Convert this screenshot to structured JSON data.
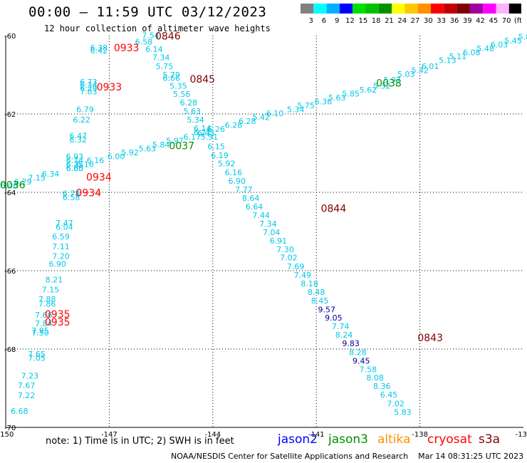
{
  "header": {
    "title": "00:00 — 11:59 UTC 03/12/2023",
    "subtitle": "12 hour collection of altimeter wave heights"
  },
  "color_scale": {
    "labels": [
      "3",
      "6",
      "9",
      "12",
      "15",
      "18",
      "21",
      "24",
      "27",
      "30",
      "33",
      "36",
      "39",
      "42",
      "45",
      "70",
      "(ft)"
    ],
    "colors": [
      "#808080",
      "#00ffff",
      "#00b0ff",
      "#0000ff",
      "#00e000",
      "#00c000",
      "#009000",
      "#ffff00",
      "#ffc800",
      "#ff9000",
      "#ff0000",
      "#c00000",
      "#800000",
      "#a000a0",
      "#ff00ff",
      "#ffb0ff",
      "#000000"
    ]
  },
  "note": "note: 1) Time is in UTC; 2) SWH is in feet",
  "satellites": [
    {
      "name": "jason2",
      "color": "#0000ff"
    },
    {
      "name": "jason3",
      "color": "#009000"
    },
    {
      "name": "altika",
      "color": "#ff9000"
    },
    {
      "name": "cryosat",
      "color": "#ff0000"
    },
    {
      "name": "s3a",
      "color": "#800000"
    }
  ],
  "footer": "NOAA/NESDIS Center for Satellite Applications and Research    Mar 14 08:31:25 UTC 2023",
  "chart_data": {
    "type": "scatter",
    "title": "00:00 — 11:59 UTC 03/12/2023",
    "subtitle": "12 hour collection of altimeter wave heights",
    "xlim": [
      -150,
      -135
    ],
    "ylim": [
      -70,
      -60
    ],
    "x_ticks": [
      "-150",
      "-147",
      "-144",
      "-141",
      "-138",
      "-135"
    ],
    "y_ticks": [
      "-60",
      "-62",
      "-64",
      "-66",
      "-68",
      "-70"
    ],
    "grid": true,
    "tracks": [
      {
        "satellite": "s3a",
        "color": "#800000",
        "time_labels": [
          {
            "text": "0846",
            "x": -145.3,
            "y": -60.1
          },
          {
            "text": "0845",
            "x": -144.3,
            "y": -61.2
          },
          {
            "text": "0844",
            "x": -140.5,
            "y": -64.5
          },
          {
            "text": "0843",
            "x": -137.7,
            "y": -67.8
          }
        ]
      },
      {
        "satellite": "cryosat",
        "color": "#ff0000",
        "time_labels": [
          {
            "text": "0933",
            "x": -146.5,
            "y": -60.4
          },
          {
            "text": "0933",
            "x": -147.0,
            "y": -61.4
          },
          {
            "text": "0934",
            "x": -147.3,
            "y": -63.7
          },
          {
            "text": "0934",
            "x": -147.6,
            "y": -64.1
          },
          {
            "text": "0935",
            "x": -148.5,
            "y": -67.2
          },
          {
            "text": "0935",
            "x": -148.5,
            "y": -67.4
          }
        ]
      },
      {
        "satellite": "jason3",
        "color": "#009000",
        "time_labels": [
          {
            "text": "0037",
            "x": -144.9,
            "y": -62.9
          },
          {
            "text": "0038",
            "x": -138.9,
            "y": -61.3
          },
          {
            "text": "0036",
            "x": -149.8,
            "y": -63.9
          }
        ]
      }
    ],
    "points": [
      {
        "x": -145.8,
        "y": -60.06,
        "v": "7.54"
      },
      {
        "x": -146.0,
        "y": -60.23,
        "v": "6.58"
      },
      {
        "x": -145.7,
        "y": -60.42,
        "v": "6.14"
      },
      {
        "x": -145.5,
        "y": -60.63,
        "v": "7.34"
      },
      {
        "x": -145.4,
        "y": -60.85,
        "v": "5.75"
      },
      {
        "x": -145.2,
        "y": -61.07,
        "v": "5.79"
      },
      {
        "x": -145.2,
        "y": -61.15,
        "v": "6.66"
      },
      {
        "x": -145.0,
        "y": -61.35,
        "v": "5.35"
      },
      {
        "x": -144.9,
        "y": -61.56,
        "v": "5.56"
      },
      {
        "x": -144.7,
        "y": -61.78,
        "v": "6.28"
      },
      {
        "x": -144.6,
        "y": -62.0,
        "v": "5.63"
      },
      {
        "x": -144.5,
        "y": -62.22,
        "v": "5.34"
      },
      {
        "x": -144.3,
        "y": -62.44,
        "v": "6.14"
      },
      {
        "x": -144.3,
        "y": -62.54,
        "v": "6.21"
      },
      {
        "x": -144.1,
        "y": -62.65,
        "v": "5.91"
      },
      {
        "x": -143.9,
        "y": -62.9,
        "v": "6.15"
      },
      {
        "x": -143.8,
        "y": -63.13,
        "v": "6.19"
      },
      {
        "x": -143.6,
        "y": -63.34,
        "v": "5.92"
      },
      {
        "x": -143.4,
        "y": -63.56,
        "v": "6.16"
      },
      {
        "x": -143.3,
        "y": -63.78,
        "v": "6.90"
      },
      {
        "x": -143.1,
        "y": -64.0,
        "v": "7.77"
      },
      {
        "x": -142.9,
        "y": -64.22,
        "v": "8.64"
      },
      {
        "x": -142.8,
        "y": -64.44,
        "v": "6.64"
      },
      {
        "x": -142.6,
        "y": -64.65,
        "v": "7.44"
      },
      {
        "x": -142.4,
        "y": -64.87,
        "v": "7.34"
      },
      {
        "x": -142.3,
        "y": -65.09,
        "v": "7.04"
      },
      {
        "x": -142.1,
        "y": -65.31,
        "v": "6.91"
      },
      {
        "x": -141.9,
        "y": -65.53,
        "v": "7.30"
      },
      {
        "x": -141.8,
        "y": -65.74,
        "v": "7.02"
      },
      {
        "x": -141.6,
        "y": -65.96,
        "v": "7.69"
      },
      {
        "x": -141.4,
        "y": -66.18,
        "v": "7.49"
      },
      {
        "x": -141.2,
        "y": -66.4,
        "v": "8.18"
      },
      {
        "x": -141.0,
        "y": -66.62,
        "v": "8.48"
      },
      {
        "x": -140.9,
        "y": -66.84,
        "v": "8.45"
      },
      {
        "x": -140.7,
        "y": -67.06,
        "v": "9.57",
        "c": "#0000a0"
      },
      {
        "x": -140.5,
        "y": -67.27,
        "v": "9.05",
        "c": "#0000a0"
      },
      {
        "x": -140.3,
        "y": -67.49,
        "v": "7.74"
      },
      {
        "x": -140.2,
        "y": -67.71,
        "v": "8.24"
      },
      {
        "x": -140.0,
        "y": -67.93,
        "v": "9.83",
        "c": "#0000a0"
      },
      {
        "x": -139.8,
        "y": -68.15,
        "v": "8.28"
      },
      {
        "x": -139.7,
        "y": -68.37,
        "v": "9.45",
        "c": "#0000a0"
      },
      {
        "x": -139.5,
        "y": -68.59,
        "v": "7.58"
      },
      {
        "x": -139.3,
        "y": -68.8,
        "v": "8.08"
      },
      {
        "x": -139.1,
        "y": -69.02,
        "v": "8.36"
      },
      {
        "x": -138.9,
        "y": -69.24,
        "v": "6.45"
      },
      {
        "x": -138.7,
        "y": -69.46,
        "v": "7.02"
      },
      {
        "x": -138.5,
        "y": -69.68,
        "v": "5.83"
      },
      {
        "x": -149.9,
        "y": -63.9,
        "v": "6.06"
      },
      {
        "x": -149.5,
        "y": -63.8,
        "v": "6.29"
      },
      {
        "x": -149.1,
        "y": -63.7,
        "v": "7.15"
      },
      {
        "x": -148.7,
        "y": -63.6,
        "v": "6.34"
      },
      {
        "x": -148.0,
        "y": -63.45,
        "v": "6.35"
      },
      {
        "x": -147.7,
        "y": -63.35,
        "v": "6.16"
      },
      {
        "x": -147.4,
        "y": -63.25,
        "v": "6.16"
      },
      {
        "x": -146.8,
        "y": -63.15,
        "v": "6.00"
      },
      {
        "x": -146.4,
        "y": -63.05,
        "v": "5.92"
      },
      {
        "x": -145.9,
        "y": -62.95,
        "v": "5.63"
      },
      {
        "x": -145.5,
        "y": -62.85,
        "v": "5.84"
      },
      {
        "x": -145.1,
        "y": -62.75,
        "v": "5.97"
      },
      {
        "x": -144.6,
        "y": -62.65,
        "v": "6.17"
      },
      {
        "x": -144.2,
        "y": -62.55,
        "v": "6.45"
      },
      {
        "x": -143.9,
        "y": -62.45,
        "v": "6.26"
      },
      {
        "x": -143.4,
        "y": -62.35,
        "v": "6.28"
      },
      {
        "x": -143.0,
        "y": -62.25,
        "v": "6.28"
      },
      {
        "x": -142.6,
        "y": -62.15,
        "v": "5.42"
      },
      {
        "x": -142.2,
        "y": -62.05,
        "v": "6.10"
      },
      {
        "x": -141.6,
        "y": -61.95,
        "v": "5.34"
      },
      {
        "x": -141.3,
        "y": -61.85,
        "v": "5.75"
      },
      {
        "x": -140.8,
        "y": -61.75,
        "v": "6.36"
      },
      {
        "x": -140.4,
        "y": -61.65,
        "v": "5.63"
      },
      {
        "x": -140.0,
        "y": -61.55,
        "v": "5.85"
      },
      {
        "x": -139.5,
        "y": -61.45,
        "v": "5.62"
      },
      {
        "x": -139.1,
        "y": -61.35,
        "v": "5.32"
      },
      {
        "x": -138.8,
        "y": -61.2,
        "v": "5.97"
      },
      {
        "x": -138.4,
        "y": -61.05,
        "v": "5.03"
      },
      {
        "x": -138.0,
        "y": -60.95,
        "v": "5.42"
      },
      {
        "x": -137.7,
        "y": -60.85,
        "v": "6.01"
      },
      {
        "x": -137.2,
        "y": -60.7,
        "v": "5.13"
      },
      {
        "x": -136.9,
        "y": -60.6,
        "v": "5.11"
      },
      {
        "x": -136.5,
        "y": -60.5,
        "v": "6.08"
      },
      {
        "x": -136.1,
        "y": -60.4,
        "v": "5.48"
      },
      {
        "x": -135.7,
        "y": -60.3,
        "v": "6.03"
      },
      {
        "x": -135.3,
        "y": -60.2,
        "v": "5.45"
      },
      {
        "x": -134.9,
        "y": -60.1,
        "v": "5.80"
      },
      {
        "x": -147.3,
        "y": -60.38,
        "v": "6.38"
      },
      {
        "x": -147.3,
        "y": -60.45,
        "v": "6.42"
      },
      {
        "x": -147.6,
        "y": -61.25,
        "v": "6.73"
      },
      {
        "x": -147.6,
        "y": -61.33,
        "v": "6.34"
      },
      {
        "x": -147.6,
        "y": -61.42,
        "v": "6.29"
      },
      {
        "x": -147.6,
        "y": -61.5,
        "v": "7.03"
      },
      {
        "x": -147.7,
        "y": -61.95,
        "v": "6.79"
      },
      {
        "x": -147.8,
        "y": -62.22,
        "v": "6.22"
      },
      {
        "x": -147.9,
        "y": -62.63,
        "v": "6.47"
      },
      {
        "x": -147.9,
        "y": -62.73,
        "v": "6.32"
      },
      {
        "x": -148.0,
        "y": -63.15,
        "v": "6.93"
      },
      {
        "x": -148.0,
        "y": -63.25,
        "v": "6.74"
      },
      {
        "x": -148.0,
        "y": -63.35,
        "v": "6.75"
      },
      {
        "x": -148.0,
        "y": -63.45,
        "v": "6.60"
      },
      {
        "x": -148.1,
        "y": -64.1,
        "v": "6.78"
      },
      {
        "x": -148.1,
        "y": -64.2,
        "v": "6.58"
      },
      {
        "x": -148.3,
        "y": -64.85,
        "v": "7.47"
      },
      {
        "x": -148.3,
        "y": -64.95,
        "v": "6.04"
      },
      {
        "x": -148.4,
        "y": -65.2,
        "v": "6.59"
      },
      {
        "x": -148.4,
        "y": -65.45,
        "v": "7.11"
      },
      {
        "x": -148.4,
        "y": -65.7,
        "v": "7.20"
      },
      {
        "x": -148.5,
        "y": -65.9,
        "v": "6.90"
      },
      {
        "x": -148.6,
        "y": -66.3,
        "v": "8.21"
      },
      {
        "x": -148.7,
        "y": -66.55,
        "v": "7.15"
      },
      {
        "x": -148.8,
        "y": -66.8,
        "v": "7.88"
      },
      {
        "x": -148.8,
        "y": -66.92,
        "v": "7.86"
      },
      {
        "x": -148.9,
        "y": -67.2,
        "v": "7.66"
      },
      {
        "x": -148.9,
        "y": -67.42,
        "v": "7.84"
      },
      {
        "x": -149.0,
        "y": -67.6,
        "v": "7.95"
      },
      {
        "x": -149.0,
        "y": -67.65,
        "v": "7.50"
      },
      {
        "x": -149.1,
        "y": -68.2,
        "v": "7.65"
      },
      {
        "x": -149.1,
        "y": -68.3,
        "v": "7.05"
      },
      {
        "x": -149.3,
        "y": -68.75,
        "v": "7.23"
      },
      {
        "x": -149.4,
        "y": -69.0,
        "v": "7.67"
      },
      {
        "x": -149.4,
        "y": -69.25,
        "v": "7.22"
      },
      {
        "x": -149.6,
        "y": -69.65,
        "v": "6.68"
      }
    ]
  }
}
